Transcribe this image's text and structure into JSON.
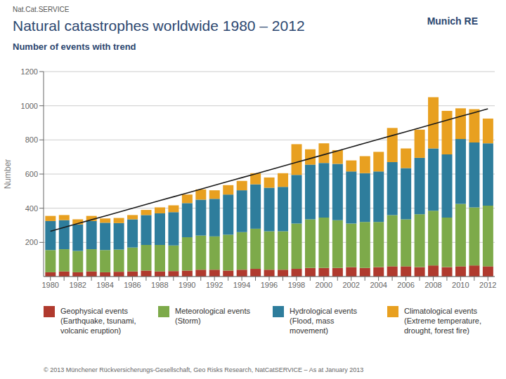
{
  "chart_data": {
    "type": "bar",
    "title": "Natural catastrophes worldwide 1980 – 2012",
    "subtitle": "Number of events with trend",
    "annotations": [
      "Nat.Cat.SERVICE",
      "Munich RE",
      "© 2013 Münchener Rückversicherungs-Gesellschaft, Geo Risks Research, NatCatSERVICE – As at January 2013"
    ],
    "ylabel": "Number",
    "categories": [
      "1980",
      null,
      "1982",
      null,
      "1984",
      null,
      "1986",
      null,
      "1988",
      null,
      "1990",
      null,
      "1992",
      null,
      "1994",
      null,
      "1996",
      null,
      "1998",
      null,
      "2000",
      null,
      "2002",
      null,
      "2004",
      null,
      "2006",
      null,
      "2008",
      null,
      "2010",
      null,
      "2012"
    ],
    "stacked": true,
    "grid": true,
    "ylim": [
      0,
      1200
    ],
    "yticks": [
      200,
      400,
      600,
      800,
      1000,
      1200
    ],
    "series": [
      {
        "name": "Geophysical events\n(Earthquake, tsunami,\nvolcanic eruption)",
        "color": "#b03a2e",
        "values": [
          25,
          30,
          25,
          30,
          25,
          28,
          30,
          35,
          30,
          32,
          35,
          40,
          40,
          35,
          40,
          45,
          40,
          40,
          45,
          50,
          50,
          50,
          55,
          50,
          55,
          60,
          60,
          55,
          65,
          55,
          60,
          65,
          60
        ]
      },
      {
        "name": "Meteorological events\n(Storm)",
        "color": "#7daa4a",
        "values": [
          130,
          130,
          125,
          130,
          130,
          130,
          140,
          150,
          155,
          150,
          195,
          200,
          195,
          210,
          220,
          235,
          225,
          225,
          265,
          285,
          295,
          280,
          255,
          270,
          265,
          300,
          275,
          310,
          320,
          290,
          365,
          340,
          355
        ]
      },
      {
        "name": "Hydrological events\n(Flood, mass\nmovement)",
        "color": "#2e7d9c",
        "values": [
          170,
          170,
          155,
          165,
          160,
          155,
          165,
          175,
          185,
          195,
          200,
          210,
          220,
          235,
          245,
          260,
          255,
          260,
          285,
          320,
          320,
          330,
          305,
          285,
          295,
          310,
          300,
          330,
          365,
          370,
          380,
          380,
          365
        ]
      },
      {
        "name": "Climatological events\n(Extreme temperature,\ndrought, forest fire)",
        "color": "#e8a020",
        "values": [
          30,
          30,
          30,
          30,
          25,
          30,
          25,
          30,
          35,
          40,
          50,
          60,
          50,
          55,
          55,
          65,
          60,
          80,
          180,
          90,
          115,
          80,
          65,
          100,
          115,
          200,
          115,
          165,
          300,
          255,
          180,
          195,
          145
        ]
      },
      {
        "type": "line",
        "color": "#1a1a1a",
        "values": [
          265.1,
          287.6,
          310.0,
          332.4,
          354.8,
          377.2,
          399.6,
          422.0,
          444.5,
          466.9,
          489.3,
          511.7,
          534.1,
          556.5,
          579.0,
          601.4,
          623.8,
          646.2,
          668.6,
          691.0,
          713.5,
          735.9,
          758.3,
          780.7,
          803.1,
          825.5,
          847.9,
          870.4,
          892.8,
          915.2,
          937.6,
          960.0,
          982.4
        ]
      }
    ]
  }
}
